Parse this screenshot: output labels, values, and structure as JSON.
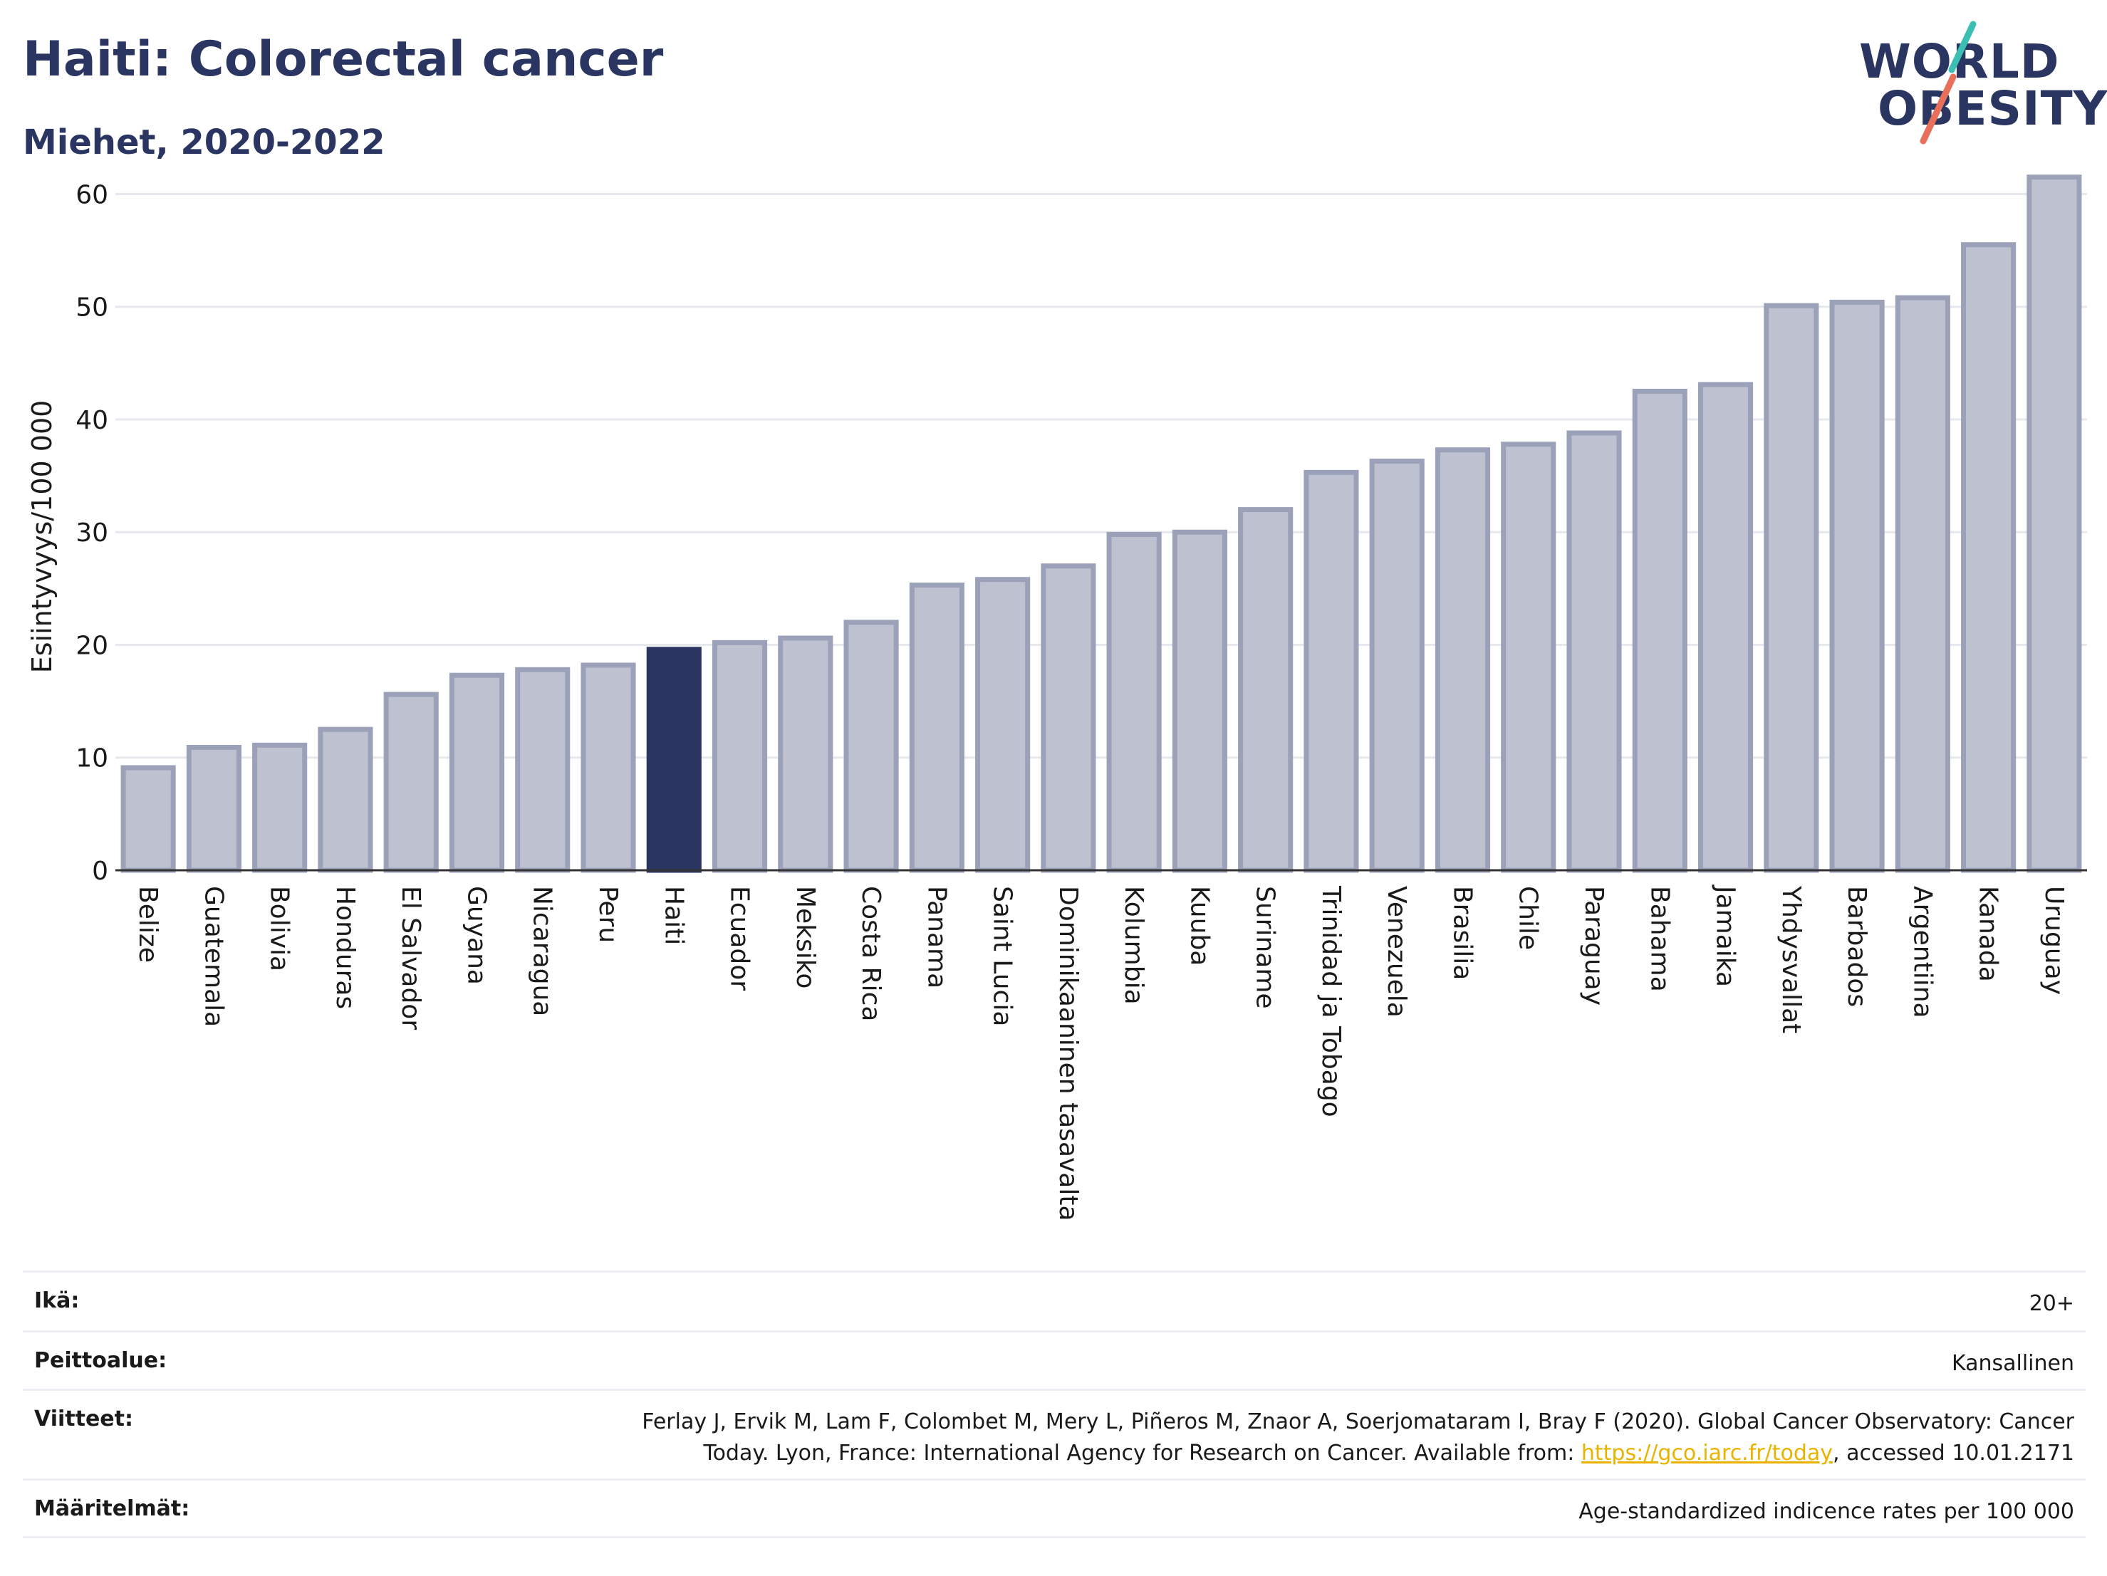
{
  "title": "Haiti: Colorectal cancer",
  "subtitle": "Miehet, 2020-2022",
  "logo": {
    "line1": "WORLD",
    "line2": "OBESITY"
  },
  "colors": {
    "title": "#2a3561",
    "highlight_bar": "#2a3561",
    "bar_fill": "#bec2d0",
    "bar_stroke": "#9ba1b8",
    "logo_teal": "#3bbfb3",
    "logo_coral": "#e8705a",
    "link": "#e8b400"
  },
  "chart_data": {
    "type": "bar",
    "title": "Haiti: Colorectal cancer",
    "subtitle": "Miehet, 2020-2022",
    "ylabel": "Esiintyvyys/100 000",
    "xlabel": "",
    "ylim": [
      0,
      63
    ],
    "yticks": [
      0,
      10,
      20,
      30,
      40,
      50,
      60
    ],
    "grid": true,
    "highlight": "Haiti",
    "categories": [
      "Belize",
      "Guatemala",
      "Bolivia",
      "Honduras",
      "El Salvador",
      "Guyana",
      "Nicaragua",
      "Peru",
      "Haiti",
      "Ecuador",
      "Meksiko",
      "Costa Rica",
      "Panama",
      "Saint Lucia",
      "Dominikaaninen tasavalta",
      "Kolumbia",
      "Kuuba",
      "Suriname",
      "Trinidad ja Tobago",
      "Venezuela",
      "Brasilia",
      "Chile",
      "Paraguay",
      "Bahama",
      "Jamaika",
      "Yhdysvallat",
      "Barbados",
      "Argentiina",
      "Kanada",
      "Uruguay"
    ],
    "values": [
      9.1,
      10.9,
      11.1,
      12.5,
      15.6,
      17.3,
      17.8,
      18.2,
      19.6,
      20.2,
      20.6,
      22.0,
      25.3,
      25.8,
      27.0,
      29.8,
      30.0,
      32.0,
      35.3,
      36.3,
      37.3,
      37.8,
      38.8,
      42.5,
      43.1,
      50.1,
      50.4,
      50.8,
      55.5,
      61.5
    ]
  },
  "footer": {
    "age_label": "Ikä:",
    "age_value": "20+",
    "coverage_label": "Peittoalue:",
    "coverage_value": "Kansallinen",
    "refs_label": "Viitteet:",
    "refs_line1": "Ferlay J, Ervik M, Lam F, Colombet M, Mery L, Piñeros M, Znaor A, Soerjomataram I, Bray F (2020). Global Cancer Observatory: Cancer",
    "refs_line2_pre": "Today. Lyon, France: International Agency for Research on Cancer. Available from: ",
    "refs_link": "https://gco.iarc.fr/today",
    "refs_line2_post": ", accessed 10.01.2171",
    "defs_label": "Määritelmät:",
    "defs_value": "Age-standardized indicence rates per 100 000"
  }
}
